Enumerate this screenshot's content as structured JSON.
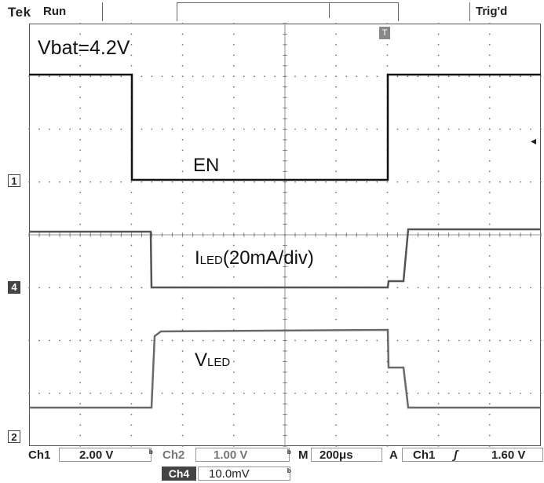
{
  "header": {
    "brand": "Tek",
    "run_status": "Run",
    "trigger_status": "Trig'd"
  },
  "annotations": {
    "battery": "Vbat=4.2V",
    "enable": "EN",
    "current_main": "I",
    "current_sub": "LED",
    "current_scale": "(20mA/div)",
    "voltage_main": "V",
    "voltage_sub": "LED"
  },
  "channel_markers": {
    "ch1": "1",
    "ch4": "4",
    "ch2": "2"
  },
  "trigger_marker": "T",
  "trigger_level_arrow": "◂",
  "readouts": {
    "ch1_label": "Ch1",
    "ch1_scale": "2.00 V",
    "ch1_bw": "ᵇ",
    "ch2_label": "Ch2",
    "ch2_scale": "1.00 V",
    "ch2_bw": "ᵇ",
    "timebase_label": "M",
    "timebase": "200μs",
    "trigger_mode": "A",
    "trigger_source": "Ch1",
    "trigger_slope": "ʃ",
    "trigger_level": "1.60 V",
    "ch4_label": "Ch4",
    "ch4_scale": "10.0mV",
    "ch4_bw": "ᵇ"
  },
  "colors": {
    "trace_en": "#111111",
    "trace_iled": "#555555",
    "trace_vled": "#6a6a6a",
    "grid": "#777777"
  }
}
